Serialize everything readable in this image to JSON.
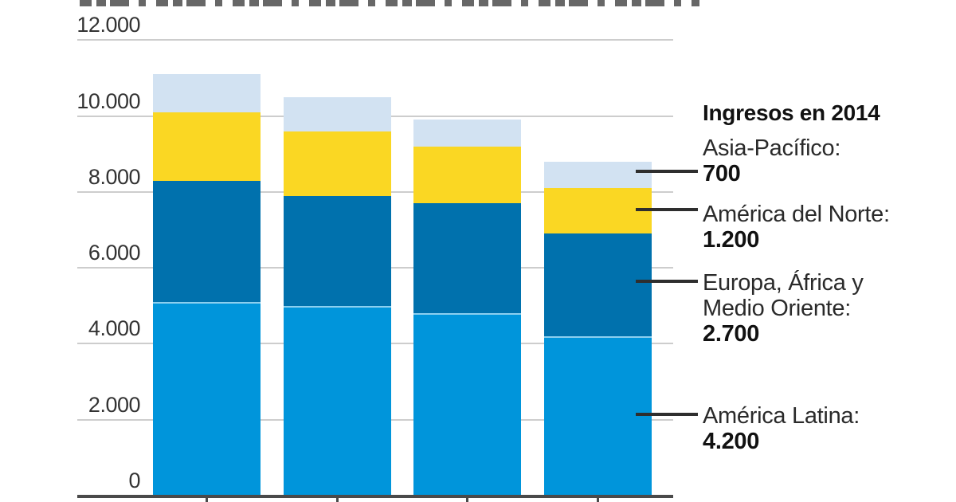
{
  "top_strip": {
    "content": "cropped text line at top edge, only glyph bottoms visible (illegible)"
  },
  "chart_data": {
    "type": "bar",
    "stacked": true,
    "title": "",
    "categories": [
      "",
      "",
      "",
      ""
    ],
    "x_axis_note": "x tick labels are cut off at the bottom edge of the image; legend header indicates the rightmost bar is 2014",
    "y_axis": {
      "tick_values": [
        0,
        2000,
        4000,
        6000,
        8000,
        10000,
        12000
      ],
      "tick_labels": [
        "0",
        "2.000",
        "4.000",
        "6.000",
        "8.000",
        "10.000",
        "12.000"
      ],
      "range": [
        0,
        12400
      ],
      "gridlines": true
    },
    "series": [
      {
        "key": "america-latina",
        "name": "América Latina",
        "color": "#0095db",
        "separator_top": true,
        "values": [
          5100,
          5000,
          4800,
          4200
        ]
      },
      {
        "key": "europa-africa-medio-oriente",
        "name": "Europa, África y Medio Oriente",
        "color": "#0071ad",
        "values": [
          3200,
          2900,
          2900,
          2700
        ]
      },
      {
        "key": "america-del-norte",
        "name": "América del Norte",
        "color": "#fad723",
        "values": [
          1800,
          1700,
          1500,
          1200
        ]
      },
      {
        "key": "asia-pacifico",
        "name": "Asia-Pacífico",
        "color": "#d2e2f2",
        "values": [
          1000,
          900,
          700,
          700
        ]
      }
    ],
    "estimation_note": "left three bars estimated from pixel heights; 2014 bar values labeled in legend",
    "legend_position": "right"
  },
  "legend": {
    "header": "Ingresos en 2014",
    "items": [
      {
        "label": "Asia-Pacífico:",
        "value": "700"
      },
      {
        "label": "América del Norte:",
        "value": "1.200"
      },
      {
        "label": "Europa, África y\nMedio Oriente:",
        "value": "2.700"
      },
      {
        "label": "América Latina:",
        "value": "4.200"
      }
    ]
  },
  "style": {
    "gridline_color": "#cdcdcd",
    "axis_line_color": "#4a4a4a",
    "connector_color": "#2e2e2e",
    "text_color": "#2a2a2a"
  }
}
